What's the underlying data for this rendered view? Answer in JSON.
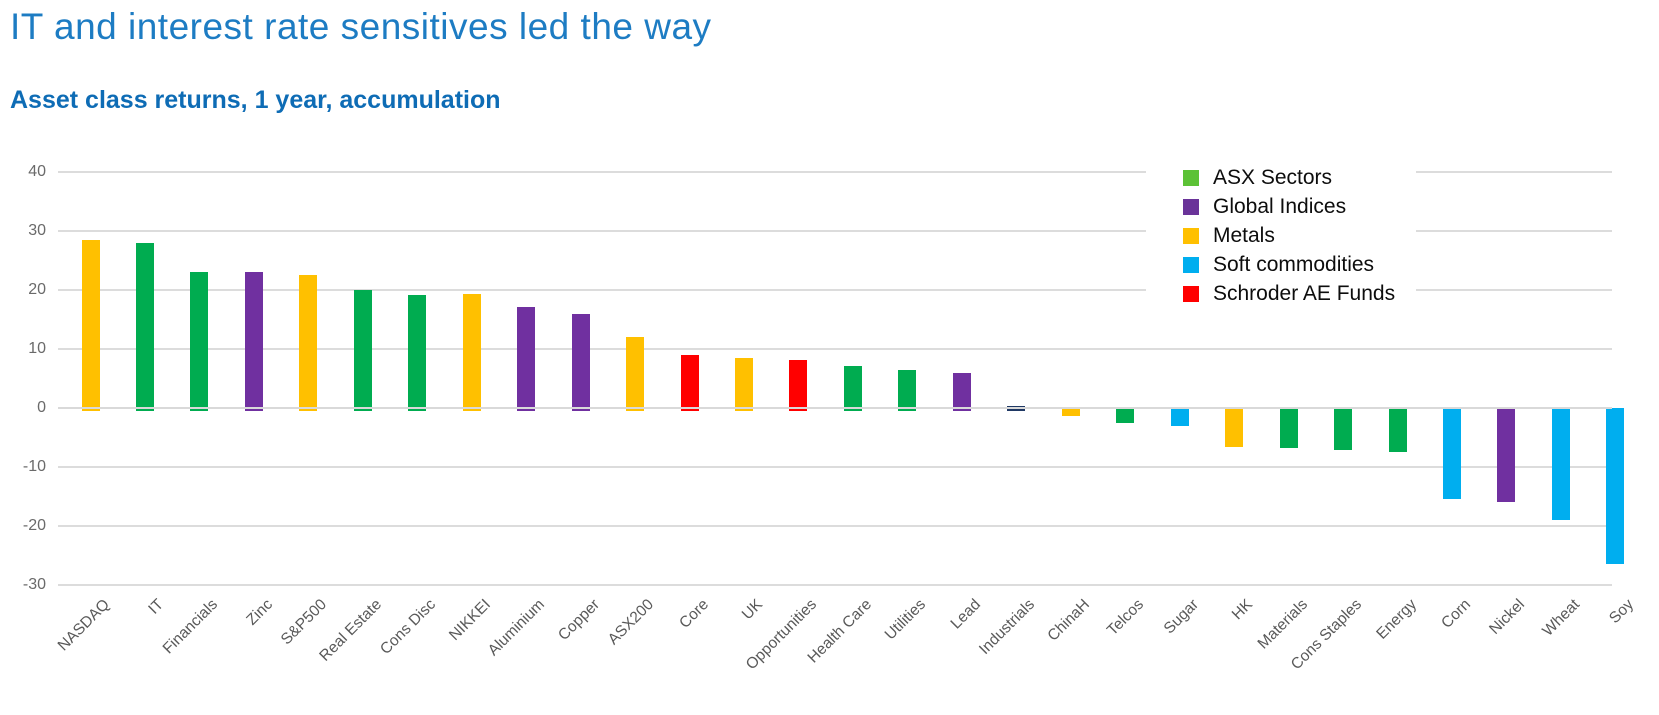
{
  "header": {
    "title": "IT and interest rate sensitives led the way",
    "subtitle": "Asset class returns, 1 year, accumulation",
    "title_color": "#1d7cc3",
    "subtitle_color": "#0e6cb5"
  },
  "chart_data": {
    "type": "bar",
    "title": "IT and interest rate sensitives led the way",
    "subtitle": "Asset class returns, 1 year, accumulation",
    "xlabel": "",
    "ylabel": "",
    "ylim": [
      -30,
      40
    ],
    "yticks": [
      40,
      30,
      20,
      10,
      0,
      -10,
      -20,
      -30
    ],
    "grid": true,
    "gridline_color": "#dcdcdc",
    "axis_text_color": "#6a6a6a",
    "category_text_color": "#595959",
    "legend_position": "upper right",
    "legend": [
      {
        "label": "ASX Sectors",
        "color": "#5cc236"
      },
      {
        "label": "Global Indices",
        "color": "#6a3399"
      },
      {
        "label": "Metals",
        "color": "#ffc000"
      },
      {
        "label": "Soft commodities",
        "color": "#00aeef"
      },
      {
        "label": "Schroder AE Funds",
        "color": "#ff0000"
      }
    ],
    "points": [
      {
        "category": "NASDAQ",
        "value": 28.5,
        "color": "#ffc000"
      },
      {
        "category": "IT",
        "value": 28.0,
        "color": "#00ac50"
      },
      {
        "category": "Financials",
        "value": 23.0,
        "color": "#00ac50"
      },
      {
        "category": "Zinc",
        "value": 23.0,
        "color": "#7030a0"
      },
      {
        "category": "S&P500",
        "value": 22.6,
        "color": "#ffc000"
      },
      {
        "category": "Real Estate",
        "value": 20.0,
        "color": "#00ac50"
      },
      {
        "category": "Cons Disc",
        "value": 19.2,
        "color": "#00ac50"
      },
      {
        "category": "NIKKEI",
        "value": 19.3,
        "color": "#ffc000"
      },
      {
        "category": "Aluminium",
        "value": 17.1,
        "color": "#7030a0"
      },
      {
        "category": "Copper",
        "value": 16.0,
        "color": "#7030a0"
      },
      {
        "category": "ASX200",
        "value": 12.0,
        "color": "#ffc000"
      },
      {
        "category": "Core",
        "value": 8.9,
        "color": "#ff0000"
      },
      {
        "category": "UK",
        "value": 8.4,
        "color": "#ffc000"
      },
      {
        "category": "Opportunities",
        "value": 8.1,
        "color": "#ff0000"
      },
      {
        "category": "Health Care",
        "value": 7.2,
        "color": "#00ac50"
      },
      {
        "category": "Utilities",
        "value": 6.4,
        "color": "#00ac50"
      },
      {
        "category": "Lead",
        "value": 6.0,
        "color": "#7030a0"
      },
      {
        "category": "Industrials",
        "value": 0.3,
        "color": "#1f3864"
      },
      {
        "category": "ChinaH",
        "value": -1.4,
        "color": "#ffc000"
      },
      {
        "category": "Telcos",
        "value": -2.5,
        "color": "#00ac50"
      },
      {
        "category": "Sugar",
        "value": -3.0,
        "color": "#00aeef"
      },
      {
        "category": "HK",
        "value": -6.6,
        "color": "#ffc000"
      },
      {
        "category": "Materials",
        "value": -6.8,
        "color": "#00ac50"
      },
      {
        "category": "Cons Staples",
        "value": -7.1,
        "color": "#00ac50"
      },
      {
        "category": "Energy",
        "value": -7.4,
        "color": "#00ac50"
      },
      {
        "category": "Corn",
        "value": -15.5,
        "color": "#00aeef"
      },
      {
        "category": "Nickel",
        "value": -16.0,
        "color": "#7030a0"
      },
      {
        "category": "Wheat",
        "value": -19.0,
        "color": "#00aeef"
      },
      {
        "category": "Soy",
        "value": -26.5,
        "color": "#00aeef"
      }
    ]
  }
}
